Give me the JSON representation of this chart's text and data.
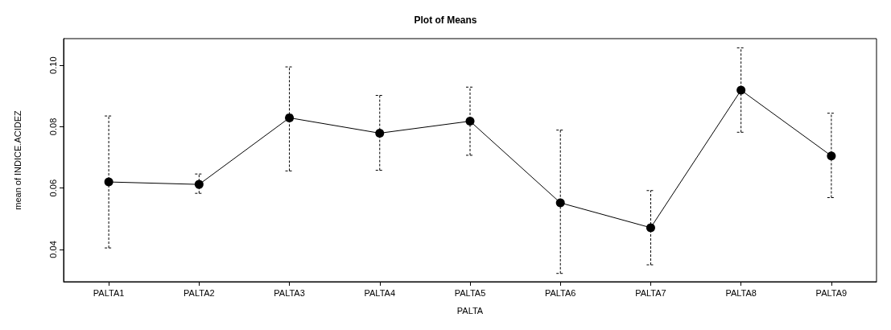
{
  "chart_data": {
    "type": "line",
    "title": "Plot of Means",
    "xlabel": "PALTA",
    "ylabel": "mean of INDICE.ACIDEZ",
    "categories": [
      "PALTA1",
      "PALTA2",
      "PALTA3",
      "PALTA4",
      "PALTA5",
      "PALTA6",
      "PALTA7",
      "PALTA8",
      "PALTA9"
    ],
    "values": [
      0.062,
      0.0612,
      0.0829,
      0.0779,
      0.0818,
      0.0552,
      0.0471,
      0.0919,
      0.0705
    ],
    "errors": [
      [
        0.0405,
        0.0835
      ],
      [
        0.0583,
        0.0646
      ],
      [
        0.0656,
        0.0995
      ],
      [
        0.0658,
        0.0902
      ],
      [
        0.0707,
        0.0929
      ],
      [
        0.0322,
        0.0789
      ],
      [
        0.035,
        0.0592
      ],
      [
        0.0782,
        0.1057
      ],
      [
        0.0569,
        0.0844
      ]
    ],
    "color": "#000000",
    "marker": "circle",
    "line_style": "solid",
    "grid": false,
    "ylim": [
      0.0295,
      0.1087
    ],
    "yticks": [
      0.04,
      0.06,
      0.08,
      {
        "value": 0.1,
        "label": "0.10"
      }
    ]
  }
}
